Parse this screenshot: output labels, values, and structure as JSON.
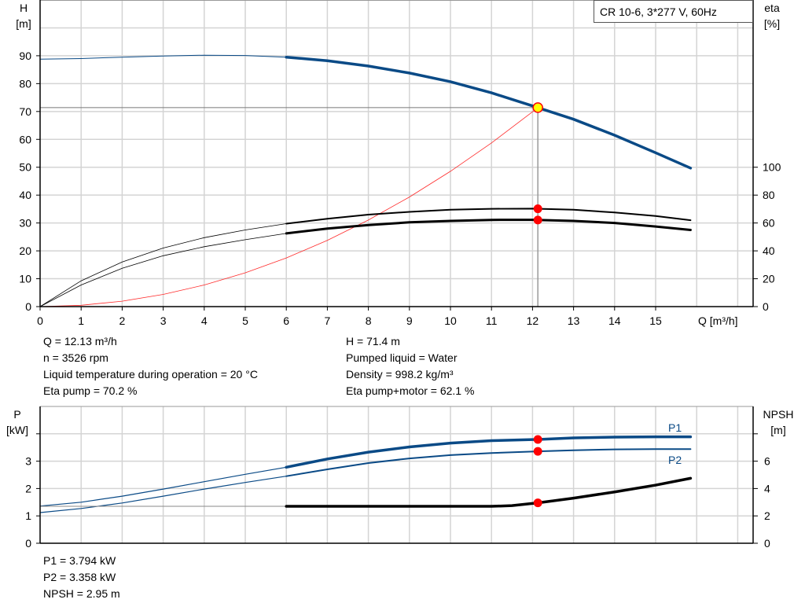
{
  "chart_data": [
    {
      "type": "line",
      "legend_box": "CR 10-6, 3*277 V, 60Hz",
      "xlabel": "Q [m³/h]",
      "ylabel_left": [
        "H",
        "[m]"
      ],
      "ylabel_right": [
        "eta",
        "[%]"
      ],
      "xlim": [
        0,
        17
      ],
      "ylim_left": [
        0,
        110
      ],
      "ylim_right": [
        0,
        220
      ],
      "xticks": [
        "0",
        "1",
        "2",
        "3",
        "4",
        "5",
        "6",
        "7",
        "8",
        "9",
        "10",
        "11",
        "12",
        "13",
        "14",
        "15"
      ],
      "yticks_left": [
        "0",
        "10",
        "20",
        "30",
        "40",
        "50",
        "60",
        "70",
        "80",
        "90"
      ],
      "yticks_right": [
        "0",
        "20",
        "40",
        "60",
        "80",
        "100"
      ],
      "grid": true,
      "series": [
        {
          "role": "head",
          "axis": "left",
          "color": "#0a4a86",
          "x": [
            0,
            1,
            2,
            3,
            4,
            5,
            6,
            7,
            8,
            9,
            10,
            11,
            12,
            12.13,
            13,
            14,
            15,
            15.85
          ],
          "y": [
            88.8,
            89,
            89.5,
            89.9,
            90.2,
            90.1,
            89.5,
            88.2,
            86.3,
            83.8,
            80.7,
            76.7,
            72,
            71.4,
            67.2,
            61.5,
            55.2,
            49.7
          ]
        },
        {
          "role": "eta-pump",
          "axis": "right",
          "color": "#000000",
          "x": [
            0,
            1,
            2,
            3,
            4,
            5,
            6,
            7,
            8,
            9,
            10,
            11,
            12,
            13,
            14,
            15,
            15.85
          ],
          "y": [
            0,
            18.5,
            32,
            42,
            49.5,
            55,
            59.5,
            63,
            66,
            68,
            69.5,
            70.2,
            70.3,
            69.5,
            67.5,
            65,
            62
          ]
        },
        {
          "role": "eta-pump-motor",
          "axis": "right",
          "color": "#000000",
          "x": [
            0,
            1,
            2,
            3,
            4,
            5,
            6,
            7,
            8,
            9,
            10,
            11,
            12,
            13,
            14,
            15,
            15.85
          ],
          "y": [
            0,
            15.5,
            27.5,
            36.5,
            43,
            48,
            52.5,
            56,
            58.5,
            60.5,
            61.5,
            62.2,
            62.3,
            61.5,
            60,
            57.5,
            55
          ]
        },
        {
          "role": "system-curve",
          "axis": "left",
          "color": "#ff2a2a",
          "x": [
            0,
            1,
            2,
            3,
            4,
            5,
            6,
            7,
            8,
            9,
            10,
            11,
            12,
            12.13
          ],
          "y": [
            0,
            0.49,
            1.94,
            4.37,
            7.76,
            12.13,
            17.47,
            23.78,
            31.06,
            39.31,
            48.53,
            58.72,
            69.88,
            71.4
          ]
        }
      ],
      "duty_point": {
        "q": 12.13,
        "h": 71.4,
        "eta_pump": 70.2,
        "eta_pump_motor": 62.1
      }
    },
    {
      "type": "line",
      "ylabel_left": [
        "P",
        "[kW]"
      ],
      "ylabel_right": [
        "NPSH",
        "[m]"
      ],
      "xlim": [
        0,
        17
      ],
      "ylim_left": [
        0,
        5
      ],
      "ylim_right": [
        0,
        10
      ],
      "yticks_left": [
        "0",
        "1",
        "2",
        "3"
      ],
      "yticks_right": [
        "0",
        "2",
        "4",
        "6"
      ],
      "grid": true,
      "series": [
        {
          "name": "P1",
          "axis": "left",
          "color": "#0a4a86",
          "x": [
            0,
            1,
            2,
            3,
            4,
            5,
            6,
            7,
            8,
            9,
            10,
            11,
            12,
            12.13,
            13,
            14,
            15,
            15.85
          ],
          "y": [
            1.36,
            1.5,
            1.72,
            1.98,
            2.25,
            2.52,
            2.78,
            3.08,
            3.33,
            3.52,
            3.66,
            3.75,
            3.79,
            3.794,
            3.85,
            3.88,
            3.89,
            3.89
          ]
        },
        {
          "name": "P2",
          "axis": "left",
          "color": "#0a4a86",
          "x": [
            0,
            1,
            2,
            3,
            4,
            5,
            6,
            7,
            8,
            9,
            10,
            11,
            12,
            12.13,
            13,
            14,
            15,
            15.85
          ],
          "y": [
            1.12,
            1.27,
            1.47,
            1.72,
            1.98,
            2.22,
            2.45,
            2.7,
            2.93,
            3.1,
            3.22,
            3.3,
            3.35,
            3.358,
            3.4,
            3.43,
            3.44,
            3.44
          ]
        },
        {
          "role": "npsh",
          "axis": "right",
          "color": "#000000",
          "x": [
            0,
            6,
            8,
            10,
            11,
            11.5,
            12.13,
            13,
            14,
            15,
            15.85
          ],
          "y": [
            2.7,
            2.7,
            2.7,
            2.7,
            2.7,
            2.75,
            2.95,
            3.3,
            3.75,
            4.25,
            4.75
          ]
        }
      ],
      "duty_point": {
        "q": 12.13,
        "p1": 3.794,
        "p2": 3.358,
        "npsh": 2.95
      }
    }
  ],
  "info_top_left": [
    "Q = 12.13 m³/h",
    "n = 3526 rpm",
    "Liquid temperature during operation = 20 °C",
    "Eta pump = 70.2 %"
  ],
  "info_top_right": [
    "H = 71.4 m",
    "Pumped liquid = Water",
    "Density = 998.2 kg/m³",
    "Eta pump+motor = 62.1 %"
  ],
  "info_bottom": [
    "P1 = 3.794 kW",
    "P2 = 3.358 kW",
    "NPSH = 2.95 m"
  ]
}
